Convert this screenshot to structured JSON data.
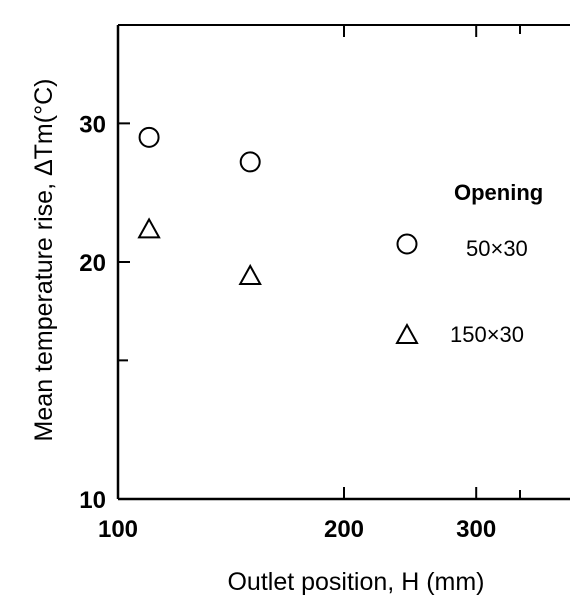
{
  "chart_data": {
    "type": "scatter",
    "xscale": "log",
    "yscale": "log",
    "xlim": [
      100,
      400
    ],
    "ylim": [
      10,
      40
    ],
    "xlabel": "Outlet position,  H (mm)",
    "ylabel": "Mean temperature rise,  ΔTm(°C)",
    "x_ticks": [
      100,
      200,
      300
    ],
    "y_ticks": [
      10,
      20,
      30
    ],
    "grid": false,
    "legend_title": "Opening",
    "legend_position": "right",
    "series": [
      {
        "name": "50×30",
        "marker": "circle",
        "x": [
          110,
          150
        ],
        "y": [
          28.8,
          26.8
        ]
      },
      {
        "name": "150×30",
        "marker": "triangle",
        "x": [
          110,
          150
        ],
        "y": [
          22,
          19.2
        ]
      }
    ]
  }
}
